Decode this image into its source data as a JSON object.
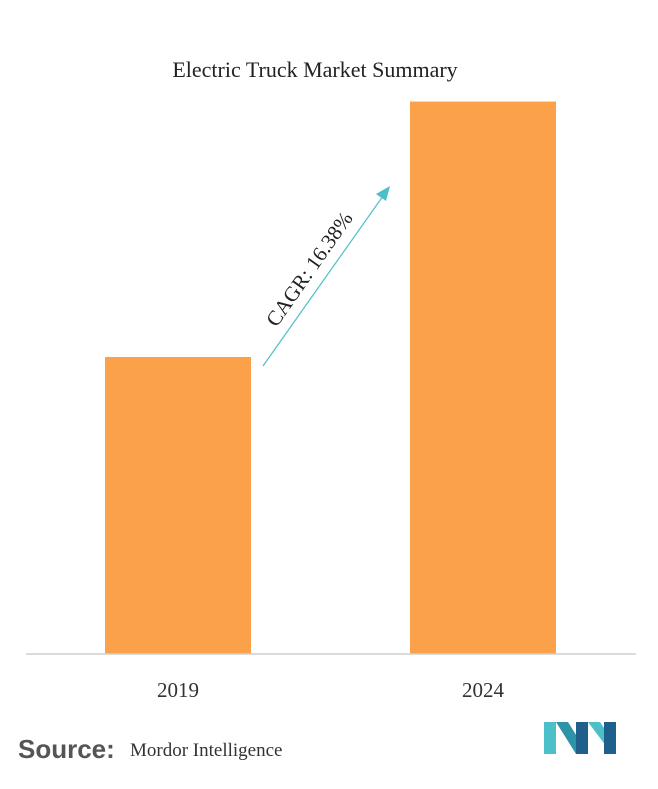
{
  "chart_data": {
    "type": "bar",
    "title": "Electric Truck Market Summary",
    "categories": [
      "2019",
      "2024"
    ],
    "values": [
      1,
      1.86
    ],
    "ylim": [
      0,
      2
    ],
    "bar_color": "#fba14a",
    "annotation": {
      "text": "CAGR: 16.38%",
      "arrow_color": "#4dbfc9"
    },
    "grid": false,
    "legend": "none"
  },
  "source": {
    "label": "Source:",
    "name": "Mordor Intelligence"
  },
  "logo": {
    "icon": "mordor-intelligence-logo",
    "colors": [
      "#4dbfc9",
      "#1f5f8b"
    ]
  }
}
